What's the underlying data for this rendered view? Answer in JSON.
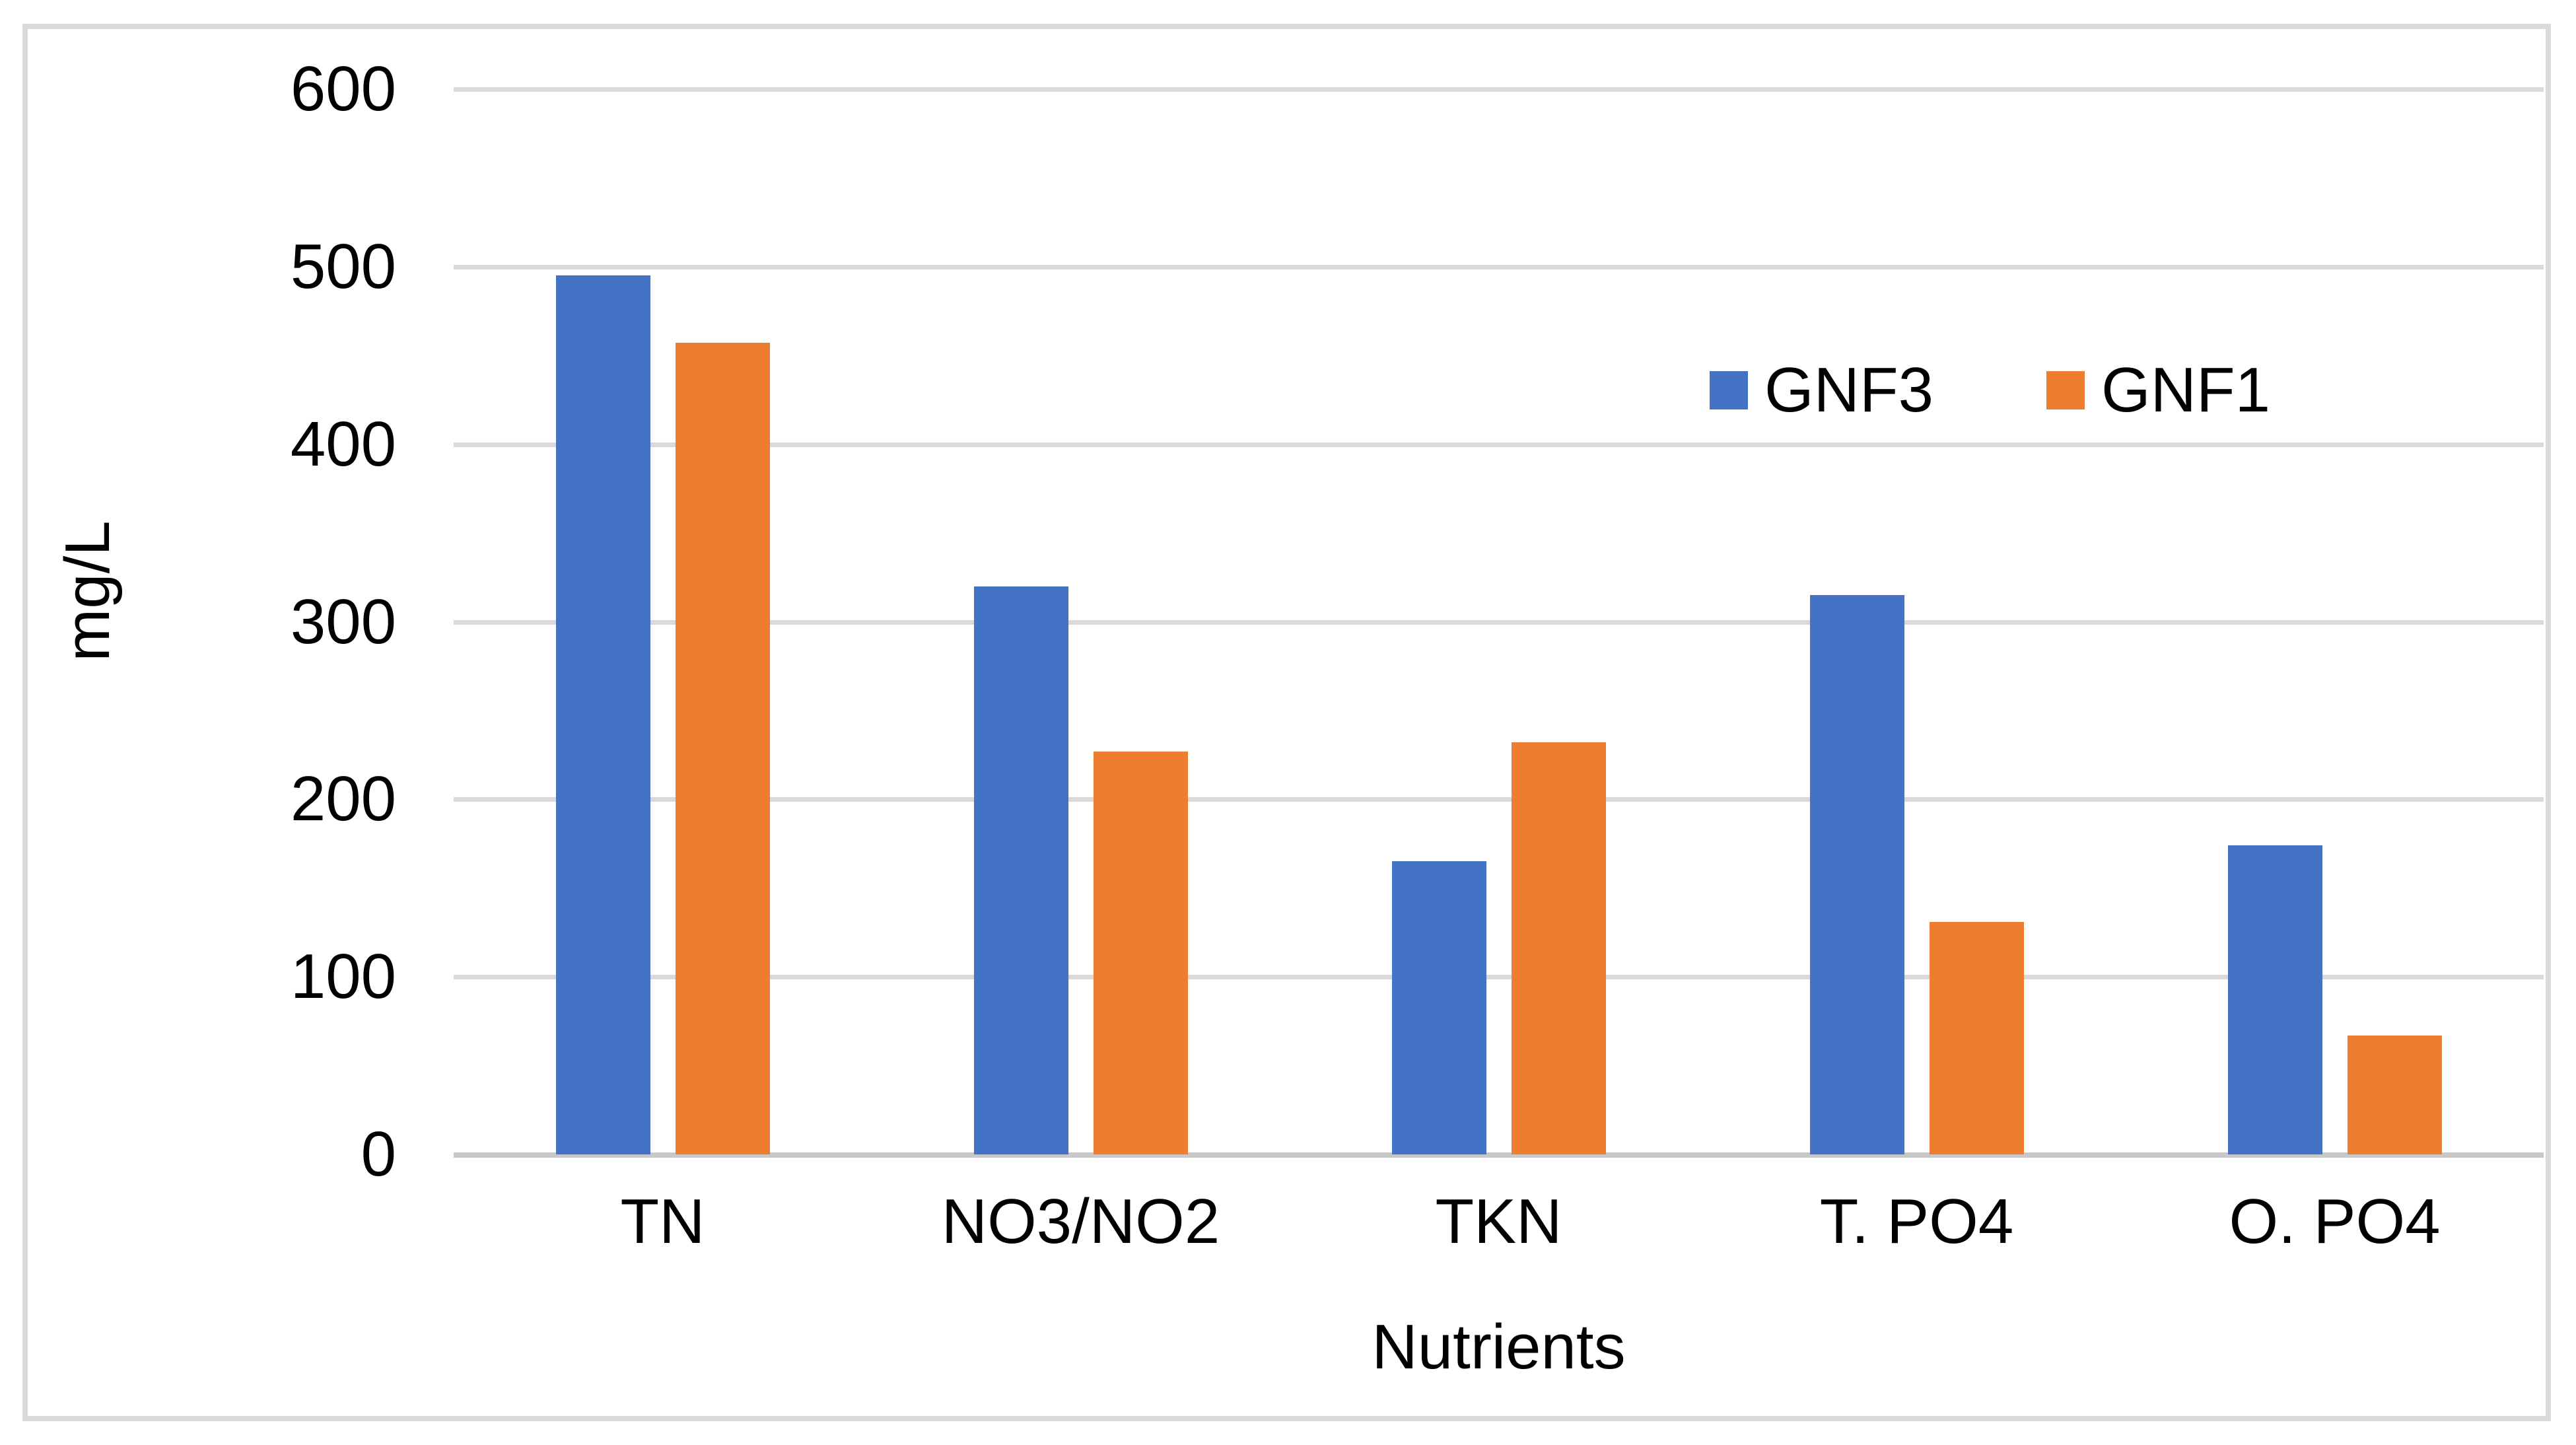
{
  "chart_data": {
    "type": "bar",
    "title": "",
    "categories": [
      "TN",
      "NO3/NO2",
      "TKN",
      "T. PO4",
      "O. PO4"
    ],
    "series": [
      {
        "name": "GNF3",
        "color": "#4472C4",
        "values": [
          495,
          320,
          165,
          315,
          174
        ]
      },
      {
        "name": "GNF1",
        "color": "#ED7D31",
        "values": [
          457,
          227,
          232,
          131,
          67
        ]
      }
    ],
    "xlabel": "Nutrients",
    "ylabel": "mg/L",
    "ylim": [
      0,
      600
    ],
    "yticks": [
      0,
      100,
      200,
      300,
      400,
      500,
      600
    ],
    "grid": true,
    "legend_position": "inside-top-right",
    "colors": {
      "gridline": "#D9D9D9",
      "axis_line": "#C8C8C8",
      "chart_border": "#D9D9D9",
      "text": "#000000",
      "background": "#FFFFFF"
    }
  }
}
